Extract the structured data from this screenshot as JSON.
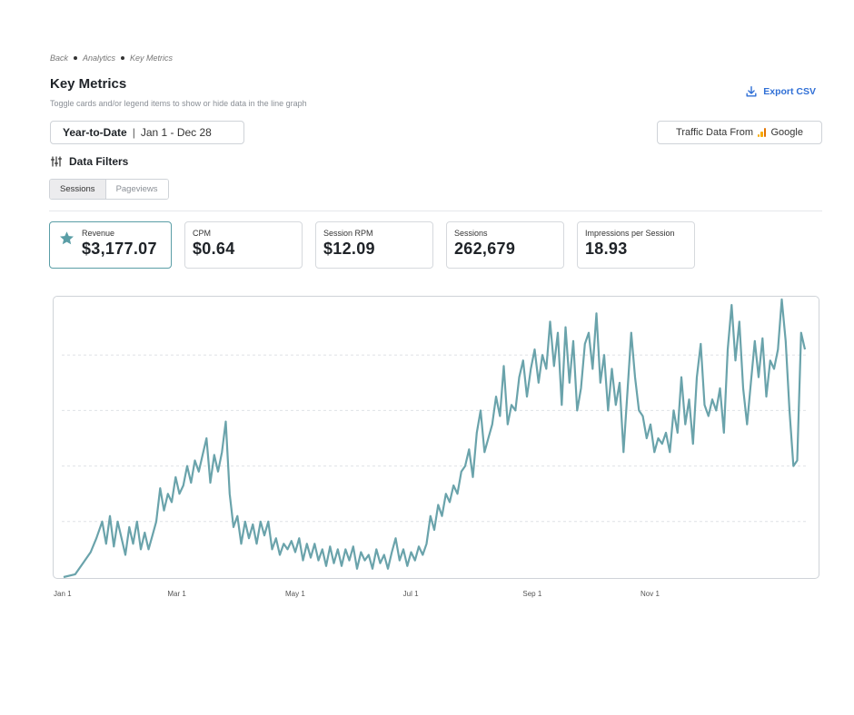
{
  "breadcrumb": [
    "Back",
    "Analytics",
    "Key Metrics"
  ],
  "page": {
    "title": "Key Metrics",
    "subtitle": "Toggle cards and/or legend items to show or hide data in the line graph"
  },
  "export_label": "Export CSV",
  "date_range": {
    "label": "Year-to-Date",
    "dates": "Jan 1 - Dec 28"
  },
  "traffic": {
    "prefix": "Traffic Data From",
    "source": "Google"
  },
  "filters": {
    "heading": "Data Filters",
    "options": [
      "Sessions",
      "Pageviews"
    ],
    "selected": "Sessions"
  },
  "metrics": [
    {
      "label": "Revenue",
      "value": "$3,177.07",
      "selected": true
    },
    {
      "label": "CPM",
      "value": "$0.64",
      "selected": false
    },
    {
      "label": "Session RPM",
      "value": "$12.09",
      "selected": false
    },
    {
      "label": "Sessions",
      "value": "262,679",
      "selected": false
    },
    {
      "label": "Impressions per Session",
      "value": "18.93",
      "selected": false
    }
  ],
  "colors": {
    "accent": "#2f6fd6",
    "line": "#6aa3ab",
    "card_selected_border": "#5a9ea6"
  },
  "chart_data": {
    "type": "line",
    "series": [
      {
        "name": "Revenue",
        "color": "#6aa3ab"
      }
    ],
    "x_tick_labels": [
      "Jan 1",
      "Mar 1",
      "May 1",
      "Jul 1",
      "Sep 1",
      "Nov 1"
    ],
    "x_tick_days": [
      0,
      59,
      120,
      181,
      243,
      304
    ],
    "grid": true,
    "points": [
      [
        0,
        0
      ],
      [
        6,
        0.01
      ],
      [
        10,
        0.05
      ],
      [
        14,
        0.09
      ],
      [
        17,
        0.14
      ],
      [
        20,
        0.2
      ],
      [
        22,
        0.12
      ],
      [
        24,
        0.22
      ],
      [
        26,
        0.11
      ],
      [
        28,
        0.2
      ],
      [
        30,
        0.14
      ],
      [
        32,
        0.08
      ],
      [
        34,
        0.18
      ],
      [
        36,
        0.12
      ],
      [
        38,
        0.2
      ],
      [
        40,
        0.1
      ],
      [
        42,
        0.16
      ],
      [
        44,
        0.1
      ],
      [
        46,
        0.15
      ],
      [
        48,
        0.2
      ],
      [
        50,
        0.32
      ],
      [
        52,
        0.24
      ],
      [
        54,
        0.3
      ],
      [
        56,
        0.27
      ],
      [
        58,
        0.36
      ],
      [
        60,
        0.3
      ],
      [
        62,
        0.33
      ],
      [
        64,
        0.4
      ],
      [
        66,
        0.34
      ],
      [
        68,
        0.42
      ],
      [
        70,
        0.38
      ],
      [
        72,
        0.44
      ],
      [
        74,
        0.5
      ],
      [
        76,
        0.34
      ],
      [
        78,
        0.44
      ],
      [
        80,
        0.38
      ],
      [
        82,
        0.45
      ],
      [
        84,
        0.56
      ],
      [
        86,
        0.3
      ],
      [
        88,
        0.18
      ],
      [
        90,
        0.22
      ],
      [
        92,
        0.12
      ],
      [
        94,
        0.2
      ],
      [
        96,
        0.14
      ],
      [
        98,
        0.19
      ],
      [
        100,
        0.12
      ],
      [
        102,
        0.2
      ],
      [
        104,
        0.15
      ],
      [
        106,
        0.2
      ],
      [
        108,
        0.1
      ],
      [
        110,
        0.14
      ],
      [
        112,
        0.08
      ],
      [
        114,
        0.12
      ],
      [
        116,
        0.1
      ],
      [
        118,
        0.13
      ],
      [
        120,
        0.09
      ],
      [
        122,
        0.14
      ],
      [
        124,
        0.06
      ],
      [
        126,
        0.12
      ],
      [
        128,
        0.07
      ],
      [
        130,
        0.12
      ],
      [
        132,
        0.06
      ],
      [
        134,
        0.1
      ],
      [
        136,
        0.04
      ],
      [
        138,
        0.11
      ],
      [
        140,
        0.05
      ],
      [
        142,
        0.1
      ],
      [
        144,
        0.04
      ],
      [
        146,
        0.1
      ],
      [
        148,
        0.06
      ],
      [
        150,
        0.11
      ],
      [
        152,
        0.03
      ],
      [
        154,
        0.09
      ],
      [
        156,
        0.06
      ],
      [
        158,
        0.08
      ],
      [
        160,
        0.03
      ],
      [
        162,
        0.1
      ],
      [
        164,
        0.05
      ],
      [
        166,
        0.08
      ],
      [
        168,
        0.03
      ],
      [
        170,
        0.09
      ],
      [
        172,
        0.14
      ],
      [
        174,
        0.06
      ],
      [
        176,
        0.1
      ],
      [
        178,
        0.04
      ],
      [
        180,
        0.09
      ],
      [
        182,
        0.06
      ],
      [
        184,
        0.11
      ],
      [
        186,
        0.08
      ],
      [
        188,
        0.12
      ],
      [
        190,
        0.22
      ],
      [
        192,
        0.17
      ],
      [
        194,
        0.26
      ],
      [
        196,
        0.22
      ],
      [
        198,
        0.3
      ],
      [
        200,
        0.27
      ],
      [
        202,
        0.33
      ],
      [
        204,
        0.3
      ],
      [
        206,
        0.38
      ],
      [
        208,
        0.4
      ],
      [
        210,
        0.46
      ],
      [
        212,
        0.36
      ],
      [
        214,
        0.52
      ],
      [
        216,
        0.6
      ],
      [
        218,
        0.45
      ],
      [
        220,
        0.5
      ],
      [
        222,
        0.55
      ],
      [
        224,
        0.65
      ],
      [
        226,
        0.58
      ],
      [
        228,
        0.76
      ],
      [
        230,
        0.55
      ],
      [
        232,
        0.62
      ],
      [
        234,
        0.6
      ],
      [
        236,
        0.72
      ],
      [
        238,
        0.78
      ],
      [
        240,
        0.65
      ],
      [
        242,
        0.75
      ],
      [
        244,
        0.82
      ],
      [
        246,
        0.7
      ],
      [
        248,
        0.8
      ],
      [
        250,
        0.75
      ],
      [
        252,
        0.92
      ],
      [
        254,
        0.76
      ],
      [
        256,
        0.88
      ],
      [
        258,
        0.62
      ],
      [
        260,
        0.9
      ],
      [
        262,
        0.7
      ],
      [
        264,
        0.85
      ],
      [
        266,
        0.6
      ],
      [
        268,
        0.68
      ],
      [
        270,
        0.84
      ],
      [
        272,
        0.88
      ],
      [
        274,
        0.75
      ],
      [
        276,
        0.95
      ],
      [
        278,
        0.7
      ],
      [
        280,
        0.8
      ],
      [
        282,
        0.6
      ],
      [
        284,
        0.75
      ],
      [
        286,
        0.62
      ],
      [
        288,
        0.7
      ],
      [
        290,
        0.45
      ],
      [
        292,
        0.66
      ],
      [
        294,
        0.88
      ],
      [
        296,
        0.72
      ],
      [
        298,
        0.6
      ],
      [
        300,
        0.58
      ],
      [
        302,
        0.5
      ],
      [
        304,
        0.55
      ],
      [
        306,
        0.45
      ],
      [
        308,
        0.5
      ],
      [
        310,
        0.48
      ],
      [
        312,
        0.52
      ],
      [
        314,
        0.45
      ],
      [
        316,
        0.6
      ],
      [
        318,
        0.52
      ],
      [
        320,
        0.72
      ],
      [
        322,
        0.55
      ],
      [
        324,
        0.64
      ],
      [
        326,
        0.48
      ],
      [
        328,
        0.72
      ],
      [
        330,
        0.84
      ],
      [
        332,
        0.62
      ],
      [
        334,
        0.58
      ],
      [
        336,
        0.64
      ],
      [
        338,
        0.6
      ],
      [
        340,
        0.68
      ],
      [
        342,
        0.52
      ],
      [
        344,
        0.82
      ],
      [
        346,
        0.98
      ],
      [
        348,
        0.78
      ],
      [
        350,
        0.92
      ],
      [
        352,
        0.68
      ],
      [
        354,
        0.55
      ],
      [
        356,
        0.7
      ],
      [
        358,
        0.85
      ],
      [
        360,
        0.72
      ],
      [
        362,
        0.86
      ],
      [
        364,
        0.65
      ],
      [
        366,
        0.78
      ],
      [
        368,
        0.75
      ],
      [
        370,
        0.82
      ],
      [
        372,
        1.0
      ],
      [
        374,
        0.85
      ],
      [
        376,
        0.6
      ],
      [
        378,
        0.4
      ],
      [
        380,
        0.42
      ],
      [
        382,
        0.88
      ],
      [
        384,
        0.82
      ]
    ]
  }
}
